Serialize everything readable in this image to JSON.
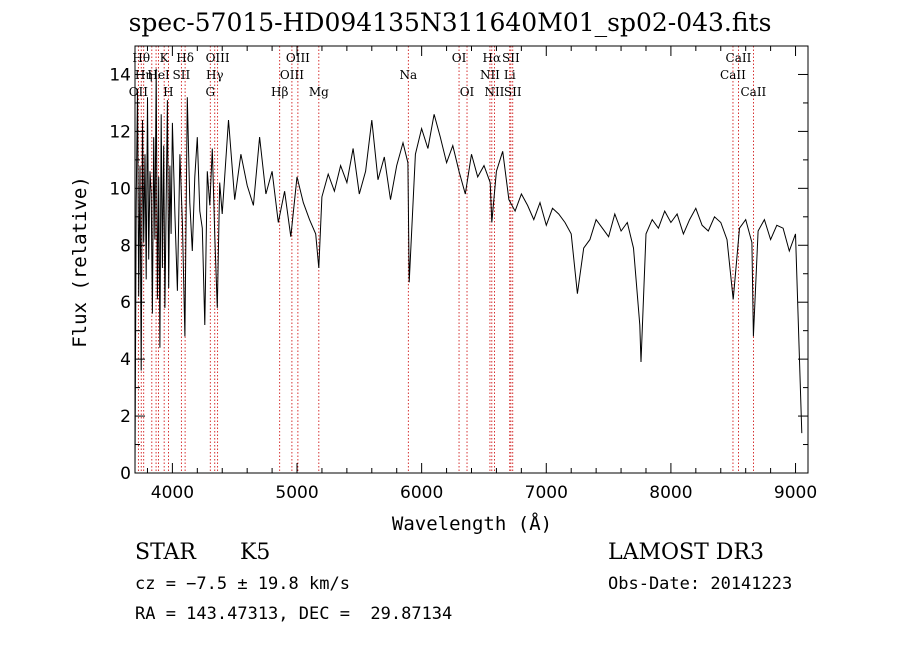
{
  "chart_data": {
    "type": "line",
    "title": "spec-57015-HD094135N311640M01_sp02-043.fits",
    "xlabel": "Wavelength (Å)",
    "ylabel": "Flux (relative)",
    "xlim": [
      3700,
      9100
    ],
    "ylim": [
      0,
      15
    ],
    "xticks": [
      4000,
      5000,
      6000,
      7000,
      8000,
      9000
    ],
    "yticks": [
      0,
      2,
      4,
      6,
      8,
      10,
      12,
      14
    ],
    "line_color": "#000000",
    "marker_color": "#cc0000",
    "series": [
      {
        "name": "flux",
        "x": [
          3700,
          3710,
          3720,
          3730,
          3740,
          3750,
          3760,
          3770,
          3780,
          3790,
          3800,
          3810,
          3820,
          3830,
          3840,
          3850,
          3860,
          3870,
          3880,
          3890,
          3900,
          3910,
          3920,
          3930,
          3940,
          3950,
          3960,
          3970,
          3980,
          3990,
          4000,
          4020,
          4040,
          4060,
          4080,
          4100,
          4120,
          4140,
          4160,
          4180,
          4200,
          4220,
          4240,
          4260,
          4280,
          4300,
          4320,
          4340,
          4360,
          4380,
          4400,
          4450,
          4500,
          4550,
          4600,
          4650,
          4700,
          4750,
          4800,
          4850,
          4900,
          4950,
          5000,
          5050,
          5100,
          5150,
          5175,
          5200,
          5250,
          5300,
          5350,
          5400,
          5450,
          5500,
          5550,
          5600,
          5650,
          5700,
          5750,
          5800,
          5850,
          5890,
          5900,
          5950,
          6000,
          6050,
          6100,
          6150,
          6200,
          6250,
          6300,
          6350,
          6400,
          6450,
          6500,
          6550,
          6563,
          6600,
          6650,
          6700,
          6750,
          6800,
          6850,
          6900,
          6950,
          7000,
          7050,
          7100,
          7150,
          7200,
          7250,
          7300,
          7350,
          7400,
          7450,
          7500,
          7550,
          7600,
          7650,
          7700,
          7750,
          7760,
          7800,
          7850,
          7900,
          7950,
          8000,
          8050,
          8100,
          8150,
          8200,
          8250,
          8300,
          8350,
          8400,
          8450,
          8500,
          8550,
          8600,
          8650,
          8662,
          8700,
          8750,
          8800,
          8850,
          8900,
          8950,
          9000,
          9050
        ],
        "y": [
          0.2,
          9.5,
          13.5,
          6.2,
          10.8,
          3.6,
          12.4,
          8.1,
          11.2,
          6.8,
          13.2,
          7.5,
          10.6,
          9.8,
          5.6,
          11.8,
          8.2,
          14.2,
          6.1,
          10.4,
          4.4,
          12.6,
          7.2,
          11.5,
          5.8,
          9.6,
          13.1,
          6.5,
          10.8,
          8.4,
          12.3,
          9.1,
          6.4,
          11.2,
          8.8,
          4.8,
          13.2,
          9.5,
          7.8,
          10.4,
          11.8,
          9.2,
          8.6,
          5.2,
          10.6,
          9.4,
          11.4,
          8.3,
          5.8,
          10.2,
          9.1,
          12.4,
          9.6,
          11.2,
          10.1,
          9.4,
          11.8,
          9.8,
          10.6,
          8.8,
          9.9,
          8.3,
          10.4,
          9.5,
          8.9,
          8.4,
          7.2,
          9.7,
          10.5,
          9.9,
          10.8,
          10.2,
          11.4,
          9.8,
          10.6,
          12.4,
          10.3,
          11.1,
          9.6,
          10.8,
          11.6,
          10.9,
          6.7,
          11.2,
          12.1,
          11.4,
          12.6,
          11.8,
          10.9,
          11.5,
          10.6,
          9.8,
          11.2,
          10.4,
          10.8,
          10.2,
          8.8,
          10.6,
          11.3,
          9.6,
          9.2,
          9.8,
          9.4,
          8.9,
          9.5,
          8.7,
          9.3,
          9.1,
          8.8,
          8.4,
          6.3,
          7.9,
          8.2,
          8.9,
          8.6,
          8.3,
          9.1,
          8.5,
          8.8,
          7.9,
          5.2,
          3.9,
          8.4,
          8.9,
          8.6,
          9.2,
          8.8,
          9.1,
          8.4,
          8.9,
          9.3,
          8.7,
          8.5,
          9.0,
          8.8,
          8.2,
          6.1,
          8.6,
          8.9,
          8.1,
          4.8,
          8.5,
          8.9,
          8.2,
          8.7,
          8.6,
          7.8,
          8.4,
          1.4
        ]
      }
    ],
    "lines": [
      {
        "x": 3727,
        "label": "OII",
        "row": 3
      },
      {
        "x": 3750,
        "label": "Hθ",
        "row": 1
      },
      {
        "x": 3770,
        "label": "Hη",
        "row": 2
      },
      {
        "x": 3835,
        "label": "",
        "row": 0
      },
      {
        "x": 3869,
        "label": "",
        "row": 0
      },
      {
        "x": 3889,
        "label": "HeI",
        "row": 2
      },
      {
        "x": 3934,
        "label": "K",
        "row": 1
      },
      {
        "x": 3968,
        "label": "H",
        "row": 3
      },
      {
        "x": 4072,
        "label": "SII",
        "row": 2
      },
      {
        "x": 4102,
        "label": "Hδ",
        "row": 1
      },
      {
        "x": 4304,
        "label": "G",
        "row": 3
      },
      {
        "x": 4340,
        "label": "Hγ",
        "row": 2
      },
      {
        "x": 4363,
        "label": "OIII",
        "row": 1
      },
      {
        "x": 4861,
        "label": "Hβ",
        "row": 3
      },
      {
        "x": 4959,
        "label": "OIII",
        "row": 2
      },
      {
        "x": 5007,
        "label": "OIII",
        "row": 1
      },
      {
        "x": 5175,
        "label": "Mg",
        "row": 3
      },
      {
        "x": 5893,
        "label": "Na",
        "row": 2
      },
      {
        "x": 6300,
        "label": "OI",
        "row": 1
      },
      {
        "x": 6364,
        "label": "OI",
        "row": 3
      },
      {
        "x": 6548,
        "label": "NII",
        "row": 2
      },
      {
        "x": 6563,
        "label": "Hα",
        "row": 1
      },
      {
        "x": 6584,
        "label": "NII",
        "row": 3
      },
      {
        "x": 6707,
        "label": "Li",
        "row": 2
      },
      {
        "x": 6716,
        "label": "SII",
        "row": 1
      },
      {
        "x": 6731,
        "label": "SII",
        "row": 3
      },
      {
        "x": 8498,
        "label": "CaII",
        "row": 2
      },
      {
        "x": 8542,
        "label": "CaII",
        "row": 1
      },
      {
        "x": 8662,
        "label": "CaII",
        "row": 3
      }
    ]
  },
  "info": {
    "class_label": "STAR",
    "subclass": "K5",
    "cz": "cz = −7.5 ± 19.8 km/s",
    "coords": "RA = 143.47313, DEC =  29.87134",
    "survey": "LAMOST DR3",
    "obs_date": "Obs-Date: 20141223"
  }
}
